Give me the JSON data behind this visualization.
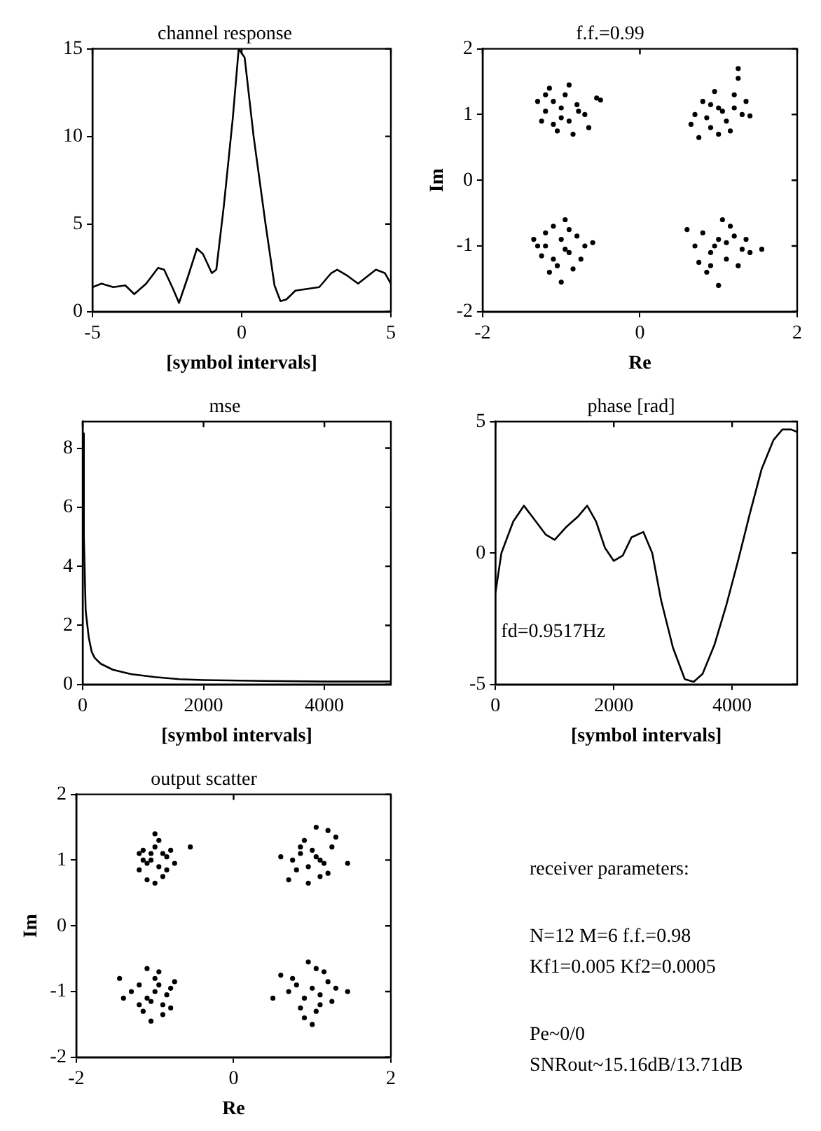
{
  "chart_data": [
    {
      "type": "line",
      "title": "channel response",
      "xlabel": "[symbol intervals]",
      "color": "#000000",
      "marker": "none",
      "line_style": "solid",
      "grid": false,
      "xlim": [
        -5,
        5
      ],
      "ylim": [
        0,
        15
      ],
      "xticks": [
        -5,
        0,
        5
      ],
      "yticks": [
        0,
        5,
        10,
        15
      ],
      "x": [
        -5,
        -4.7,
        -4.3,
        -3.9,
        -3.6,
        -3.2,
        -2.8,
        -2.6,
        -2.3,
        -2.1,
        -1.8,
        -1.5,
        -1.3,
        -1.0,
        -0.85,
        -0.6,
        -0.3,
        -0.1,
        0.1,
        0.4,
        0.8,
        1.1,
        1.3,
        1.5,
        1.8,
        2.2,
        2.6,
        3.0,
        3.2,
        3.5,
        3.9,
        4.2,
        4.5,
        4.8,
        5
      ],
      "values": [
        1.4,
        1.6,
        1.4,
        1.5,
        1.0,
        1.6,
        2.5,
        2.4,
        1.3,
        0.5,
        2.0,
        3.6,
        3.3,
        2.2,
        2.4,
        6,
        11,
        15,
        14.5,
        10,
        5,
        1.5,
        0.6,
        0.7,
        1.2,
        1.3,
        1.4,
        2.2,
        2.4,
        2.1,
        1.6,
        2.0,
        2.4,
        2.2,
        1.6
      ]
    },
    {
      "type": "scatter",
      "title": "f.f.=0.99",
      "xlabel": "Re",
      "ylabel": "Im",
      "color": "#000000",
      "marker": "circle",
      "grid": false,
      "xlim": [
        -2,
        2
      ],
      "ylim": [
        -2,
        2
      ],
      "xticks": [
        -2,
        0,
        2
      ],
      "yticks": [
        -2,
        -1,
        0,
        1,
        2
      ],
      "x": [
        -1.2,
        -1.1,
        -1.0,
        -0.9,
        -0.8,
        -1.25,
        -1.05,
        -0.85,
        -0.7,
        -1.3,
        -0.95,
        -1.15,
        -0.55,
        -0.65,
        -1.0,
        -1.1,
        -0.78,
        -1.2,
        -0.5,
        -0.9,
        0.7,
        0.8,
        0.9,
        1.0,
        1.1,
        1.2,
        1.3,
        0.75,
        0.95,
        1.15,
        1.25,
        0.85,
        1.05,
        1.35,
        0.65,
        1.4,
        1.25,
        1.0,
        0.9,
        1.2,
        -1.3,
        -1.2,
        -1.1,
        -1.0,
        -0.9,
        -0.8,
        -0.7,
        -1.15,
        -0.95,
        -1.05,
        -0.85,
        -1.25,
        -0.6,
        -1.1,
        -0.95,
        -1.35,
        -0.75,
        -1.0,
        -1.2,
        -0.9,
        0.7,
        0.8,
        0.9,
        1.0,
        1.1,
        1.2,
        1.3,
        0.6,
        0.85,
        1.05,
        1.25,
        1.4,
        0.95,
        1.15,
        0.75,
        1.55,
        1.35,
        0.9,
        1.0,
        1.1
      ],
      "values": [
        1.05,
        1.2,
        1.1,
        0.9,
        1.15,
        0.9,
        0.75,
        0.7,
        1.0,
        1.2,
        1.3,
        1.4,
        1.25,
        0.8,
        0.95,
        0.85,
        1.05,
        1.3,
        1.22,
        1.45,
        1.0,
        1.2,
        0.8,
        1.1,
        0.9,
        1.3,
        1.0,
        0.65,
        1.35,
        0.75,
        1.55,
        0.95,
        1.05,
        1.2,
        0.85,
        0.98,
        1.7,
        0.7,
        1.15,
        1.1,
        -1.0,
        -0.8,
        -1.2,
        -0.9,
        -1.1,
        -0.85,
        -1.0,
        -1.4,
        -0.6,
        -1.3,
        -1.35,
        -1.15,
        -0.95,
        -0.7,
        -1.05,
        -0.9,
        -1.2,
        -1.55,
        -1.0,
        -0.75,
        -1.0,
        -0.8,
        -1.1,
        -0.9,
        -1.2,
        -0.85,
        -1.05,
        -0.75,
        -1.4,
        -0.6,
        -1.3,
        -1.1,
        -1.0,
        -0.7,
        -1.25,
        -1.05,
        -0.9,
        -1.3,
        -1.6,
        -0.95
      ]
    },
    {
      "type": "line",
      "title": "mse",
      "xlabel": "[symbol intervals]",
      "color": "#000000",
      "marker": "none",
      "line_style": "solid",
      "grid": false,
      "xlim": [
        0,
        5100
      ],
      "ylim": [
        0,
        8.9
      ],
      "xticks": [
        0,
        2000,
        4000
      ],
      "yticks": [
        0,
        2,
        4,
        6,
        8
      ],
      "x": [
        0,
        20,
        50,
        100,
        150,
        200,
        300,
        500,
        800,
        1200,
        1600,
        2000,
        3000,
        4000,
        5100
      ],
      "values": [
        8.5,
        5,
        2.5,
        1.6,
        1.1,
        0.9,
        0.7,
        0.5,
        0.35,
        0.25,
        0.18,
        0.15,
        0.12,
        0.1,
        0.1
      ]
    },
    {
      "type": "line",
      "title": "phase [rad]",
      "xlabel": "[symbol intervals]",
      "color": "#000000",
      "marker": "none",
      "line_style": "solid",
      "grid": false,
      "xlim": [
        0,
        5100
      ],
      "ylim": [
        -5,
        5
      ],
      "xticks": [
        0,
        2000,
        4000
      ],
      "yticks": [
        -5,
        0,
        5
      ],
      "annotations": [
        "fd=0.9517Hz"
      ],
      "x": [
        0,
        100,
        300,
        480,
        650,
        850,
        1000,
        1200,
        1400,
        1550,
        1700,
        1850,
        2000,
        2150,
        2300,
        2500,
        2650,
        2800,
        3000,
        3200,
        3350,
        3500,
        3700,
        3900,
        4100,
        4300,
        4500,
        4700,
        4850,
        5000,
        5100
      ],
      "values": [
        -1.5,
        0,
        1.2,
        1.8,
        1.3,
        0.7,
        0.5,
        1.0,
        1.4,
        1.8,
        1.2,
        0.2,
        -0.3,
        -0.1,
        0.6,
        0.8,
        0,
        -1.8,
        -3.6,
        -4.8,
        -4.9,
        -4.6,
        -3.5,
        -2,
        -0.3,
        1.5,
        3.2,
        4.3,
        4.7,
        4.7,
        4.6
      ]
    },
    {
      "type": "scatter",
      "title": "output scatter",
      "xlabel": "Re",
      "ylabel": "Im",
      "color": "#000000",
      "marker": "circle",
      "grid": false,
      "xlim": [
        -2,
        2
      ],
      "ylim": [
        -2,
        2
      ],
      "xticks": [
        -2,
        0,
        2
      ],
      "yticks": [
        -2,
        -1,
        0,
        1,
        2
      ],
      "x": [
        -1.15,
        -1.05,
        -0.95,
        -0.85,
        -1.2,
        -1.0,
        -0.9,
        -1.1,
        -0.8,
        -0.55,
        -1.0,
        -1.2,
        -0.95,
        -0.75,
        -1.1,
        -0.85,
        -1.05,
        -0.9,
        -1.15,
        -1.0,
        0.75,
        0.85,
        0.95,
        1.05,
        1.15,
        1.25,
        0.7,
        0.9,
        1.1,
        1.2,
        0.8,
        1.0,
        1.3,
        1.45,
        0.6,
        0.95,
        1.05,
        1.2,
        0.85,
        1.1,
        -1.3,
        -1.2,
        -1.1,
        -1.0,
        -0.9,
        -0.8,
        -1.15,
        -0.95,
        -1.05,
        -0.85,
        -1.45,
        -1.4,
        -0.75,
        -1.0,
        -1.1,
        -0.9,
        -1.2,
        -0.95,
        -1.05,
        -0.8,
        0.7,
        0.8,
        0.9,
        1.0,
        1.1,
        1.2,
        0.85,
        0.95,
        1.05,
        1.15,
        0.5,
        1.45,
        0.75,
        1.3,
        1.0,
        0.9,
        1.1,
        0.6,
        1.25,
        1.05
      ],
      "values": [
        1.0,
        1.1,
        0.9,
        1.05,
        0.85,
        1.2,
        0.75,
        0.7,
        1.15,
        1.2,
        1.4,
        1.1,
        1.3,
        0.95,
        0.95,
        0.85,
        1.0,
        1.1,
        1.15,
        0.65,
        1.0,
        1.1,
        0.9,
        1.05,
        0.95,
        1.2,
        0.7,
        1.3,
        0.75,
        1.45,
        0.85,
        1.15,
        1.35,
        0.95,
        1.05,
        0.65,
        1.5,
        0.8,
        1.2,
        1.0,
        -1.0,
        -0.9,
        -1.1,
        -0.8,
        -1.2,
        -0.95,
        -1.3,
        -0.7,
        -1.45,
        -1.05,
        -0.8,
        -1.1,
        -0.85,
        -1.0,
        -0.65,
        -1.35,
        -1.2,
        -0.9,
        -1.15,
        -1.25,
        -1.0,
        -0.9,
        -1.1,
        -0.95,
        -1.05,
        -0.85,
        -1.25,
        -0.55,
        -1.3,
        -0.7,
        -1.1,
        -1.0,
        -0.8,
        -0.95,
        -1.5,
        -1.4,
        -1.2,
        -0.75,
        -1.15,
        -0.65
      ]
    },
    {
      "type": "other",
      "annotations": [
        "receiver parameters:",
        "N=12 M=6 f.f.=0.98",
        "Kf1=0.005 Kf2=0.0005",
        "Pe~0/0",
        "SNRout~15.16dB/13.71dB"
      ]
    }
  ]
}
